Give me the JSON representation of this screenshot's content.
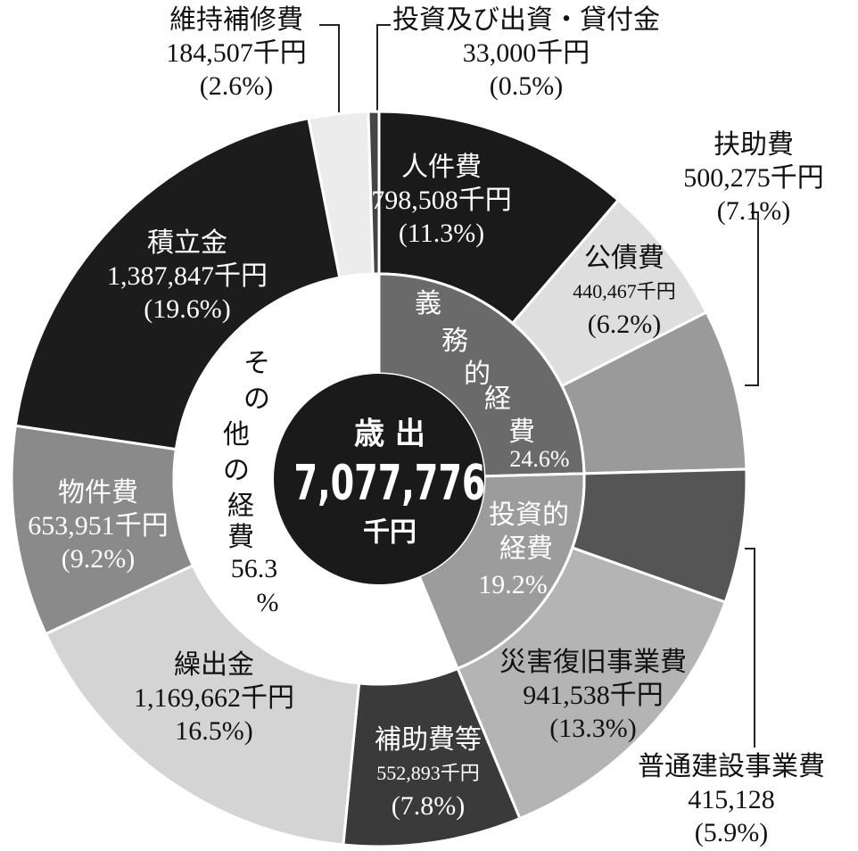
{
  "chart_data": {
    "type": "donut",
    "categories": [
      "人件費",
      "公債費",
      "扶助費",
      "普通建設事業費",
      "災害復旧事業費",
      "補助費等",
      "繰出金",
      "物件費",
      "積立金",
      "維持補修費",
      "投資及び出資・貸付金"
    ],
    "values": [
      798508,
      440467,
      500275,
      415128,
      941538,
      552893,
      1169662,
      653951,
      1387847,
      184507,
      33000
    ],
    "value_labels": [
      "798,508千円",
      "440,467千円",
      "500,275千円",
      "415,128",
      "941,538千円",
      "552,893千円",
      "1,169,662千円",
      "653,951千円",
      "1,387,847千円",
      "184,507千円",
      "33,000千円"
    ],
    "percents": [
      11.3,
      6.2,
      7.1,
      5.9,
      13.3,
      7.8,
      16.5,
      9.2,
      19.6,
      2.6,
      0.5
    ],
    "percent_labels": [
      "(11.3%)",
      "(6.2%)",
      "(7.1%)",
      "(5.9%)",
      "(13.3%)",
      "(7.8%)",
      "16.5%)",
      "(9.2%)",
      "(19.6%)",
      "(2.6%)",
      "(0.5%)"
    ],
    "colors": [
      "#1a1a1a",
      "#dedede",
      "#9a9a9a",
      "#555555",
      "#b4b4b4",
      "#3a3a3a",
      "#d4d4d4",
      "#8a8a8a",
      "#1c1c1c",
      "#ececec",
      "#444444"
    ],
    "inner": {
      "categories": [
        "義務的経費",
        "投資的経費",
        "その他の経費"
      ],
      "values": [
        24.6,
        19.2,
        56.3
      ],
      "value_labels": [
        "24.6%",
        "19.2%",
        "56.3%"
      ],
      "colors": [
        "#6a6a6a",
        "#9c9c9c",
        "#ffffff"
      ]
    },
    "center_label": "歳 出",
    "total": 7077776,
    "total_label": "7,077,776",
    "total_unit": "千円"
  }
}
